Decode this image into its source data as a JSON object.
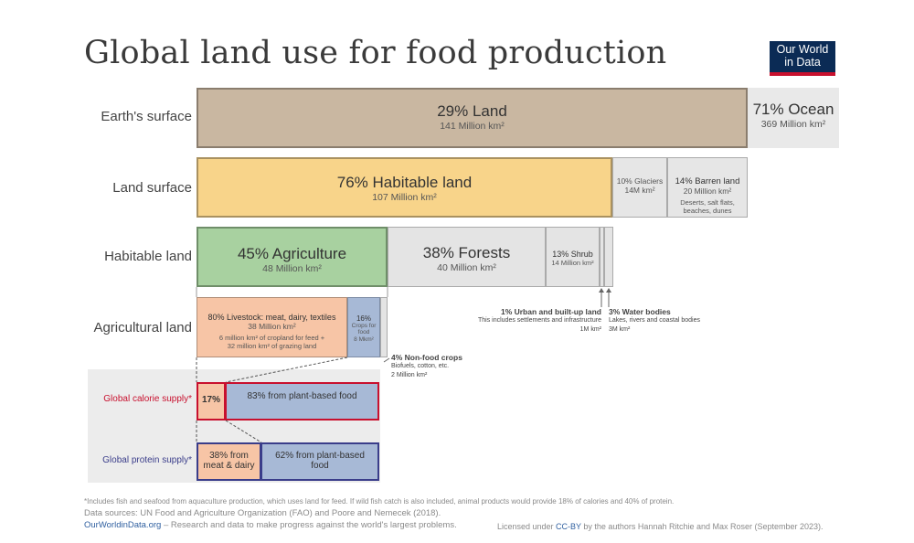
{
  "title": "Global land use for food production",
  "logo": {
    "line1": "Our World",
    "line2": "in Data"
  },
  "colors": {
    "land": "#c9b7a1",
    "habitable": "#f8d48a",
    "agriculture": "#a8d1a0",
    "forests": "#e4e4e4",
    "livestock": "#f7c5a6",
    "crops": "#a7b9d6",
    "calorie_border": "#c8102e",
    "protein_border": "#3a3d8a"
  },
  "rows": {
    "earth": "Earth's surface",
    "land": "Land surface",
    "habitable": "Habitable land",
    "agricultural": "Agricultural land",
    "calorie": "Global calorie supply*",
    "protein": "Global protein supply*"
  },
  "chart_data": {
    "type": "bar",
    "title": "Global land use for food production",
    "rows": [
      {
        "name": "Earth's surface",
        "segments": [
          {
            "pct": 29,
            "label": "Land",
            "area": "141 Million km²"
          },
          {
            "pct": 71,
            "label": "Ocean",
            "area": "369 Million km²"
          }
        ]
      },
      {
        "name": "Land surface",
        "segments": [
          {
            "pct": 76,
            "label": "Habitable land",
            "area": "107 Million km²"
          },
          {
            "pct": 10,
            "label": "Glaciers",
            "area": "14M km²"
          },
          {
            "pct": 14,
            "label": "Barren land",
            "area": "20 Million km²",
            "note": "Deserts, salt flats, beaches, dunes"
          }
        ]
      },
      {
        "name": "Habitable land",
        "segments": [
          {
            "pct": 45,
            "label": "Agriculture",
            "area": "48 Million km²"
          },
          {
            "pct": 38,
            "label": "Forests",
            "area": "40 Million km²"
          },
          {
            "pct": 13,
            "label": "Shrub",
            "area": "14 Million km²"
          },
          {
            "pct": 1,
            "label": "Urban and built-up land",
            "area": "1M km²",
            "note": "This includes settlements and infrastructure"
          },
          {
            "pct": 3,
            "label": "Water bodies",
            "area": "3M km²",
            "note": "Lakes, rivers and coastal bodies"
          }
        ]
      },
      {
        "name": "Agricultural land",
        "segments": [
          {
            "pct": 80,
            "label": "Livestock: meat, dairy, textiles",
            "area": "38 Million km²",
            "note": "6 million km² of cropland for feed + 32 million km² of grazing land"
          },
          {
            "pct": 16,
            "label": "Crops for food",
            "area": "8 Mkm²"
          },
          {
            "pct": 4,
            "label": "Non-food crops",
            "area": "2 Million km²",
            "note": "Biofuels, cotton, etc."
          }
        ]
      },
      {
        "name": "Global calorie supply*",
        "segments": [
          {
            "pct": 17,
            "label": ""
          },
          {
            "pct": 83,
            "label": "from plant-based food"
          }
        ]
      },
      {
        "name": "Global protein supply*",
        "segments": [
          {
            "pct": 38,
            "label": "from meat & dairy"
          },
          {
            "pct": 62,
            "label": "from plant-based food"
          }
        ]
      }
    ]
  },
  "labels": {
    "land_big": "29% Land",
    "land_sub": "141 Million km²",
    "ocean_big": "71% Ocean",
    "ocean_sub": "369 Million km²",
    "hab_big": "76% Habitable land",
    "hab_sub": "107 Million km²",
    "glaciers_1": "10% Glaciers",
    "glaciers_2": "14M km²",
    "barren_1": "14% Barren land",
    "barren_2": "20 Million km²",
    "barren_3": "Deserts, salt flats,",
    "barren_4": "beaches, dunes",
    "agri_big": "45% Agriculture",
    "agri_sub": "48 Million km²",
    "forest_big": "38% Forests",
    "forest_sub": "40 Million km²",
    "shrub_1": "13% Shrub",
    "shrub_2": "14 Million km²",
    "urban_1": "1% Urban and built-up land",
    "urban_2": "This includes settlements and infrastructure",
    "urban_3": "1M km²",
    "water_1": "3% Water bodies",
    "water_2": "Lakes, rivers and coastal bodies",
    "water_3": "3M km²",
    "live_1": "80% Livestock: meat, dairy, textiles",
    "live_2": "38 Million km²",
    "live_3": "6 million km² of cropland for feed +",
    "live_4": "32 million km² of grazing land",
    "crops_1": "16%",
    "crops_2": "Crops for food",
    "crops_3": "8 Mkm²",
    "nonfood_1": "4% Non-food crops",
    "nonfood_2": "Biofuels, cotton, etc.",
    "nonfood_3": "2 Million km²",
    "cal_a": "17%",
    "cal_b": "83% from plant-based food",
    "pro_a": "38% from meat & dairy",
    "pro_b": "62% from plant-based food"
  },
  "footer": {
    "note": "*Includes fish and seafood from aquaculture production, which uses land for feed. If wild fish catch is also included, animal products would provide 18% of calories and 40% of protein.",
    "sources": "Data sources: UN Food and Agriculture Organization (FAO) and Poore and Nemecek (2018).",
    "site": "OurWorldinData.org",
    "tagline": " – Research and data to make progress against the world's largest problems.",
    "license_pre": "Licensed under ",
    "license_link": "CC-BY",
    "license_post": " by the authors Hannah Ritchie and Max Roser (September 2023)."
  }
}
